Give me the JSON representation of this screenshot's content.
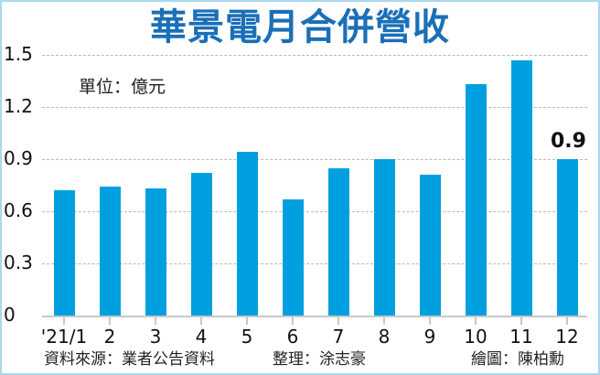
{
  "chart_data": {
    "type": "bar",
    "title": "華景電月合併營收",
    "unit_label": "單位：億元",
    "xlabel": "",
    "ylabel": "億元",
    "ylim": [
      0,
      1.5
    ],
    "yticks": [
      "0",
      "0.3",
      "0.6",
      "0.9",
      "1.2",
      "1.5"
    ],
    "grid": true,
    "categories": [
      "'21/1",
      "2",
      "3",
      "4",
      "5",
      "6",
      "7",
      "8",
      "9",
      "10",
      "11",
      "12"
    ],
    "values": [
      0.72,
      0.74,
      0.73,
      0.82,
      0.94,
      0.67,
      0.85,
      0.9,
      0.81,
      1.33,
      1.47,
      0.9
    ],
    "annotations": [
      {
        "category": "12",
        "text": "0.9"
      }
    ],
    "bar_color": "#00a0e0",
    "title_color": "#1a6fb8"
  },
  "footer": {
    "source": "資料來源：業者公告資料",
    "compiled": "整理：涂志豪",
    "drawn": "繪圖：陳柏勳"
  }
}
